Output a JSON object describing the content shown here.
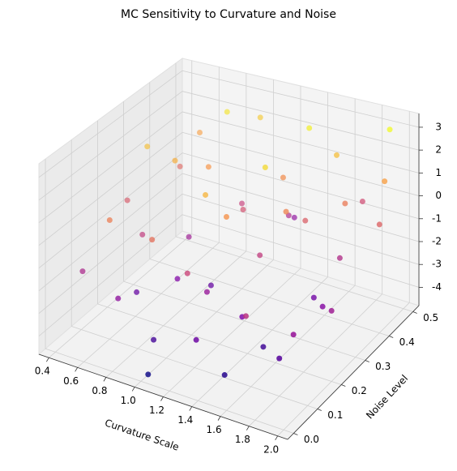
{
  "chart_data": {
    "type": "scatter3d",
    "title": "MC Sensitivity to Curvature and Noise",
    "xlabel": "Curvature Scale",
    "ylabel": "Noise Level",
    "xlim": [
      0.33,
      2.07
    ],
    "ylim": [
      -0.025,
      0.525
    ],
    "zlim": [
      -4.8,
      3.6
    ],
    "xticks": [
      0.4,
      0.6,
      0.8,
      {
        "value": 1.0,
        "label": "1.0"
      },
      1.2,
      1.4,
      1.6,
      1.8,
      {
        "value": 2.0,
        "label": "2.0"
      }
    ],
    "yticks": [
      {
        "value": 0,
        "label": "0.0"
      },
      0.1,
      0.2,
      0.3,
      0.4,
      0.5
    ],
    "zticks": [
      -4,
      -3,
      -2,
      -1,
      0,
      1,
      2,
      3
    ],
    "colormap": "plasma",
    "grid": true,
    "x": [
      0.5,
      0.6,
      0.7,
      0.8,
      0.9,
      1.0,
      1.1,
      1.2,
      1.3,
      1.4,
      1.5,
      1.6,
      1.7,
      1.8,
      1.9,
      2.0,
      0.55,
      0.65,
      0.75,
      0.85,
      0.95,
      1.05,
      1.15,
      1.25,
      1.35,
      1.45,
      1.55,
      1.65,
      1.75,
      1.85,
      1.95,
      0.45,
      0.6,
      0.7,
      0.8,
      0.9,
      1.0,
      1.1,
      1.2,
      1.3,
      1.4,
      1.5,
      1.6,
      1.7,
      1.8,
      1.9,
      2.0,
      1.05,
      0.5,
      1.25
    ],
    "y": [
      0.05,
      0.1,
      0.3,
      0.45,
      0.2,
      0.05,
      0.35,
      0.15,
      0.4,
      0.25,
      0.05,
      0.45,
      0.3,
      0.1,
      0.5,
      0.2,
      0.4,
      0.2,
      0.05,
      0.35,
      0.5,
      0.25,
      0.1,
      0.45,
      0.3,
      0.15,
      0.35,
      0.05,
      0.4,
      0.25,
      0.45,
      0.25,
      0.45,
      0.15,
      0.3,
      0.1,
      0.4,
      0.2,
      0.5,
      0.05,
      0.45,
      0.3,
      0.15,
      0.5,
      0.35,
      0.1,
      0.4,
      0.0,
      0.3,
      0.2
    ],
    "z": [
      -1.5,
      0.5,
      1.5,
      2.5,
      -2.5,
      -3.5,
      -0.5,
      -2.0,
      0.8,
      -1.0,
      -4.0,
      1.8,
      -2.8,
      -3.2,
      2.9,
      -1.8,
      0.0,
      -1.0,
      -2.2,
      1.0,
      2.0,
      -3.0,
      -0.8,
      -1.5,
      2.3,
      -2.6,
      -0.2,
      -1.2,
      0.4,
      -2.4,
      1.2,
      -0.3,
      1.2,
      -3.0,
      -1.8,
      0.2,
      -0.9,
      1.6,
      -2.2,
      -2.9,
      2.7,
      0.6,
      -3.6,
      -0.6,
      -1.4,
      -2.0,
      -0.1,
      -4.4,
      1.8,
      0.9
    ]
  }
}
